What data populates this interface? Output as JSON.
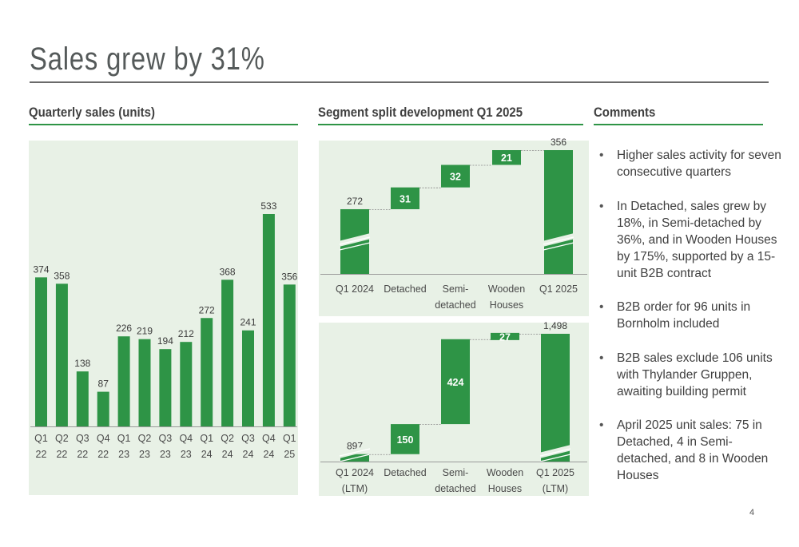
{
  "title": "Sales grew by 31%",
  "sections": {
    "quarterly": "Quarterly sales (units)",
    "segment": "Segment split development Q1 2025",
    "comments": "Comments"
  },
  "colors": {
    "bar": "#2e9446",
    "panel": "#e8f1e6",
    "connector": "#8a8a8a"
  },
  "chart_data": [
    {
      "type": "bar",
      "title": "Quarterly sales (units)",
      "categories": [
        [
          "Q1",
          "22"
        ],
        [
          "Q2",
          "22"
        ],
        [
          "Q3",
          "22"
        ],
        [
          "Q4",
          "22"
        ],
        [
          "Q1",
          "23"
        ],
        [
          "Q2",
          "23"
        ],
        [
          "Q3",
          "23"
        ],
        [
          "Q4",
          "23"
        ],
        [
          "Q1",
          "24"
        ],
        [
          "Q2",
          "24"
        ],
        [
          "Q3",
          "24"
        ],
        [
          "Q4",
          "24"
        ],
        [
          "Q1",
          "25"
        ]
      ],
      "values": [
        374,
        358,
        138,
        87,
        226,
        219,
        194,
        212,
        272,
        368,
        241,
        533,
        356
      ],
      "value_labels": [
        "374",
        "358",
        "138",
        "87",
        "226",
        "219",
        "194",
        "212",
        "272",
        "368",
        "241",
        "533",
        "356"
      ],
      "ylim": [
        0,
        560
      ],
      "grid": false
    },
    {
      "type": "bar",
      "subtype": "waterfall",
      "categories": [
        [
          "Q1 2024"
        ],
        [
          "Detached"
        ],
        [
          "Semi-",
          "detached"
        ],
        [
          "Wooden",
          "Houses"
        ],
        [
          "Q1 2025"
        ]
      ],
      "values": [
        272,
        31,
        32,
        21,
        356
      ],
      "value_labels": [
        "272",
        "31",
        "32",
        "21",
        "356"
      ],
      "kinds": [
        "total",
        "delta",
        "delta",
        "delta",
        "total"
      ],
      "axis_break": true,
      "grid": false
    },
    {
      "type": "bar",
      "subtype": "waterfall",
      "categories": [
        [
          "Q1 2024",
          "(LTM)"
        ],
        [
          "Detached"
        ],
        [
          "Semi-",
          "detached"
        ],
        [
          "Wooden",
          "Houses"
        ],
        [
          "Q1 2025",
          "(LTM)"
        ]
      ],
      "values": [
        897,
        150,
        424,
        27,
        1498
      ],
      "value_labels": [
        "897",
        "150",
        "424",
        "27",
        "1,498"
      ],
      "kinds": [
        "total",
        "delta",
        "delta",
        "delta",
        "total"
      ],
      "axis_break": true,
      "grid": false
    }
  ],
  "comments": [
    "Higher sales activity for seven consecutive quarters",
    "In Detached, sales grew by 18%, in Semi-detached by 36%, and in Wooden Houses by 175%, supported by a 15-unit B2B contract",
    "B2B order for 96 units in Bornholm included",
    "B2B sales exclude 106 units with Thylander Gruppen, awaiting building permit",
    "April 2025 unit sales: 75 in Detached, 4 in Semi-detached, and 8 in Wooden Houses"
  ],
  "page_number": "4"
}
